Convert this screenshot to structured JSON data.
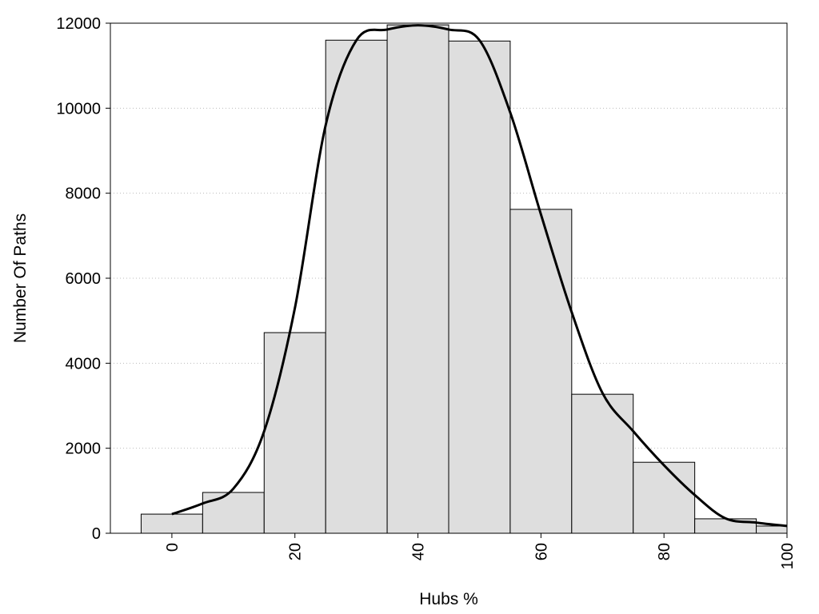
{
  "chart_data": {
    "type": "bar",
    "title": "",
    "xlabel": "Hubs %",
    "ylabel": "Number Of Paths",
    "xlim": [
      -10,
      100
    ],
    "ylim": [
      0,
      12000
    ],
    "x_ticks": [
      "0",
      "20",
      "40",
      "60",
      "80",
      "100"
    ],
    "y_ticks": [
      "0",
      "2000",
      "4000",
      "6000",
      "8000",
      "10000",
      "12000"
    ],
    "grid": "horizontal dotted",
    "bin_width": 10,
    "bins": [
      {
        "x": 0,
        "value": 450
      },
      {
        "x": 10,
        "value": 960
      },
      {
        "x": 20,
        "value": 4720
      },
      {
        "x": 30,
        "value": 11600
      },
      {
        "x": 40,
        "value": 11960
      },
      {
        "x": 50,
        "value": 11580
      },
      {
        "x": 60,
        "value": 7620
      },
      {
        "x": 70,
        "value": 3270
      },
      {
        "x": 80,
        "value": 1670
      },
      {
        "x": 90,
        "value": 340
      },
      {
        "x": 100,
        "value": 170
      }
    ],
    "curve": {
      "x": [
        0,
        5,
        10,
        15,
        20,
        25,
        30,
        35,
        40,
        45,
        50,
        55,
        60,
        65,
        70,
        75,
        80,
        85,
        90,
        95,
        100
      ],
      "y": [
        450,
        700,
        1050,
        2400,
        5300,
        9600,
        11600,
        11850,
        11950,
        11850,
        11600,
        9900,
        7500,
        5200,
        3300,
        2400,
        1600,
        900,
        350,
        250,
        170
      ]
    },
    "colors": {
      "bar_fill": "#dedede",
      "bar_stroke": "#000000",
      "curve": "#000000",
      "grid": "#bbbbbb"
    }
  }
}
